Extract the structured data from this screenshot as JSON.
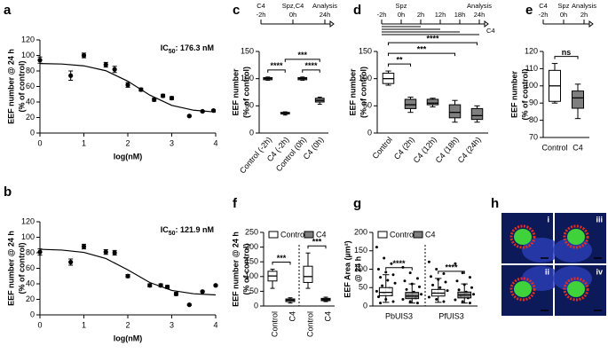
{
  "chart_data": [
    {
      "type": "scatter",
      "label": "a",
      "annotation": [
        "IC",
        "50",
        ": 176.3 nM"
      ],
      "xlabel": "log(nM)",
      "ylabel": [
        "EEF number @ 24 h",
        "(% of control)"
      ],
      "x": [
        0,
        0.7,
        1,
        1.5,
        1.7,
        2,
        2.3,
        2.6,
        2.8,
        3,
        3.4,
        3.7,
        3.95
      ],
      "values": [
        94,
        74,
        100,
        88,
        82,
        62,
        56,
        43,
        48,
        45,
        22,
        28,
        29
      ],
      "errors": [
        4,
        6,
        3,
        3,
        4,
        3,
        2,
        2,
        2,
        2,
        1,
        1,
        1
      ],
      "fit": {
        "x": [
          0,
          0.5,
          1,
          1.5,
          2,
          2.5,
          3,
          3.5,
          4
        ],
        "values": [
          89.6,
          88.9,
          86.6,
          80.3,
          66.8,
          48.9,
          35.6,
          29.4,
          27.1
        ]
      },
      "xlim": [
        0,
        4
      ],
      "xticks": [
        0,
        1,
        2,
        3,
        4
      ],
      "ylim": [
        0,
        120
      ],
      "yticks": [
        0,
        20,
        40,
        60,
        80,
        100,
        120
      ],
      "color": "#000000"
    },
    {
      "type": "scatter",
      "label": "b",
      "annotation": [
        "IC",
        "50",
        ": 121.9 nM"
      ],
      "xlabel": "log(nM)",
      "ylabel": [
        "EEF number @ 24 h",
        "(% of control)"
      ],
      "x": [
        0,
        0.7,
        1,
        1.5,
        1.7,
        2,
        2.5,
        2.75,
        2.9,
        3.1,
        3.4,
        3.7,
        4
      ],
      "values": [
        81,
        68,
        88,
        81,
        80,
        50,
        38,
        38,
        36,
        27,
        13,
        30,
        38
      ],
      "errors": [
        4,
        4,
        3,
        3,
        3,
        2,
        2,
        2,
        2,
        2,
        1,
        1,
        1
      ],
      "fit": {
        "x": [
          0,
          0.5,
          1,
          1.5,
          2,
          2.5,
          3,
          3.5,
          4
        ],
        "values": [
          84.5,
          83.5,
          80.5,
          72.6,
          58.0,
          41.7,
          31.5,
          27.2,
          25.7
        ]
      },
      "xlim": [
        0,
        4
      ],
      "xticks": [
        0,
        1,
        2,
        3,
        4
      ],
      "ylim": [
        0,
        120
      ],
      "yticks": [
        0,
        20,
        40,
        60,
        80,
        100,
        120
      ],
      "color": "#000000"
    },
    {
      "type": "box",
      "label": "c",
      "ylabel": [
        "EEF number",
        "(% of control)"
      ],
      "categories": [
        "Control (-2h)",
        "C4 (-2h)",
        "Control (0h)",
        "C4 (0h)"
      ],
      "colors": [
        "#ffffff",
        "#7f7f7f",
        "#ffffff",
        "#7f7f7f"
      ],
      "min": [
        97,
        33,
        97,
        53
      ],
      "q1": [
        98,
        35,
        98,
        57
      ],
      "median": [
        100,
        36,
        100,
        60
      ],
      "q3": [
        102,
        38,
        102,
        64
      ],
      "max": [
        103,
        39,
        103,
        66
      ],
      "ylim": [
        0,
        150
      ],
      "yticks": [
        0,
        50,
        100,
        150
      ],
      "significance": [
        {
          "between": [
            0,
            1
          ],
          "label": "****"
        },
        {
          "between": [
            2,
            3
          ],
          "label": "****"
        },
        {
          "between": [
            1,
            3
          ],
          "label": "***"
        }
      ],
      "timeline": {
        "top": [
          "C4",
          "Spz,C4",
          "Analysis"
        ],
        "bottom": [
          "-2h",
          "0h",
          "24h"
        ]
      }
    },
    {
      "type": "box",
      "label": "d",
      "ylabel": [
        "EEF number",
        "(% of control)"
      ],
      "categories": [
        "Control",
        "C4 (2h)",
        "C4 (12h)",
        "C4 (18h)",
        "C4 (24h)"
      ],
      "colors": [
        "#ffffff",
        "#7f7f7f",
        "#7f7f7f",
        "#7f7f7f",
        "#7f7f7f"
      ],
      "min": [
        88,
        38,
        48,
        20,
        20
      ],
      "q1": [
        91,
        45,
        52,
        28,
        25
      ],
      "median": [
        100,
        52,
        55,
        38,
        32
      ],
      "q3": [
        110,
        62,
        62,
        52,
        45
      ],
      "max": [
        114,
        66,
        64,
        60,
        50
      ],
      "ylim": [
        0,
        150
      ],
      "yticks": [
        0,
        50,
        100,
        150
      ],
      "significance": [
        {
          "between": [
            0,
            1
          ],
          "label": "**"
        },
        {
          "between": [
            0,
            3
          ],
          "label": "***"
        },
        {
          "between": [
            0,
            4
          ],
          "label": "****"
        }
      ],
      "timeline": {
        "top": [
          null,
          "Spz",
          null,
          null,
          null,
          "Analysis"
        ],
        "bottom": [
          "-2h",
          "0h",
          "2h",
          "12h",
          "18h",
          "24h"
        ],
        "note": "C4"
      }
    },
    {
      "type": "box",
      "label": "e",
      "ylabel": [
        "EEF number",
        "(% of control)"
      ],
      "categories": [
        "Control",
        "C4"
      ],
      "colors": [
        "#ffffff",
        "#7f7f7f"
      ],
      "min": [
        90,
        81
      ],
      "q1": [
        91,
        87
      ],
      "median": [
        100,
        93
      ],
      "q3": [
        109,
        97
      ],
      "max": [
        113,
        101
      ],
      "ylim": [
        70,
        120
      ],
      "yticks": [
        70,
        80,
        90,
        100,
        110,
        120
      ],
      "significance": [
        {
          "between": [
            0,
            1
          ],
          "label": "ns"
        }
      ],
      "timeline": {
        "top": [
          "C4",
          "Spz",
          "Analysis"
        ],
        "bottom": [
          "-2h",
          "0h",
          "2h"
        ]
      }
    },
    {
      "type": "box",
      "label": "f",
      "ylabel": [
        "EEF number @ 24 h",
        "(% of control)"
      ],
      "categories": [
        "Control",
        "C4",
        "Control",
        "C4"
      ],
      "series": [
        {
          "name": "Control",
          "color": "#ffffff",
          "min": [
            60,
            60
          ],
          "q1": [
            85,
            80
          ],
          "median": [
            102,
            100
          ],
          "q3": [
            118,
            135
          ],
          "max": [
            125,
            180
          ]
        },
        {
          "name": "C4",
          "color": "#7f7f7f",
          "min": [
            10,
            15
          ],
          "q1": [
            15,
            18
          ],
          "median": [
            20,
            22
          ],
          "q3": [
            24,
            26
          ],
          "max": [
            28,
            30
          ]
        }
      ],
      "ylim": [
        0,
        250
      ],
      "yticks": [
        0,
        50,
        100,
        150,
        200,
        250
      ],
      "group_divider": true,
      "significance": [
        {
          "between": [
            0,
            1
          ],
          "label": "***"
        },
        {
          "between": [
            2,
            3
          ],
          "label": "***"
        }
      ]
    },
    {
      "type": "box",
      "label": "g",
      "ylabel": [
        "EEF Area (µm²)",
        "@ 24 h"
      ],
      "categories": [
        "PbUIS3",
        "PfUIS3"
      ],
      "series": [
        {
          "name": "Control",
          "color": "#ffffff",
          "min": [
            10,
            10
          ],
          "q1": [
            28,
            27
          ],
          "median": [
            37,
            35
          ],
          "q3": [
            50,
            45
          ],
          "max": [
            85,
            75
          ],
          "points": [
            [
              160,
              130,
              115,
              100,
              92,
              85,
              78,
              70,
              62,
              55,
              48,
              40,
              35,
              30,
              25,
              18,
              12,
              8
            ],
            [
              120,
              100,
              88,
              80,
              72,
              65,
              57,
              50,
              42,
              36,
              30,
              24,
              18,
              12
            ]
          ]
        },
        {
          "name": "C4",
          "color": "#7f7f7f",
          "min": [
            8,
            8
          ],
          "q1": [
            20,
            22
          ],
          "median": [
            27,
            30
          ],
          "q3": [
            37,
            38
          ],
          "max": [
            60,
            60
          ],
          "points": [
            [
              105,
              90,
              75,
              68,
              60,
              52,
              45,
              38,
              32,
              27,
              22,
              18,
              12,
              8
            ],
            [
              115,
              90,
              78,
              68,
              58,
              50,
              44,
              38,
              32,
              27,
              22,
              17,
              12,
              8
            ]
          ]
        }
      ],
      "ylim": [
        0,
        200
      ],
      "yticks": [
        0,
        50,
        100,
        150,
        200
      ],
      "group_divider": true,
      "significance": [
        {
          "between": [
            0,
            1
          ],
          "label": "****"
        },
        {
          "between": [
            2,
            3
          ],
          "label": "****"
        }
      ]
    }
  ],
  "panel_h": {
    "label": "h",
    "insets": [
      "i",
      "iii",
      "ii",
      "iv"
    ]
  }
}
